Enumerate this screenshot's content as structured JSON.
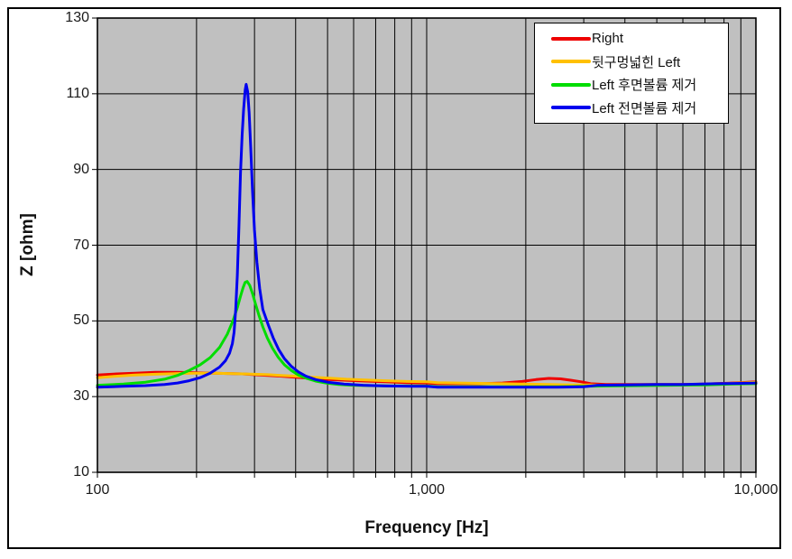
{
  "figure": {
    "background": "#ffffff",
    "border_color": "#000000"
  },
  "chart_data": {
    "type": "line",
    "title": "",
    "xlabel": "Frequency [Hz]",
    "ylabel": "Z [ohm]",
    "x_scale": "log",
    "xlim": [
      100,
      10000
    ],
    "ylim": [
      10,
      130
    ],
    "y_tick_step": 20,
    "y_tick_labels": [
      "10",
      "30",
      "50",
      "70",
      "90",
      "110",
      "130"
    ],
    "x_ticks": [
      {
        "value": 100,
        "label": "100"
      },
      {
        "value": 1000,
        "label": "1,000"
      },
      {
        "value": 10000,
        "label": "10,000"
      }
    ],
    "grid": true,
    "grid_style": "log minor vertical gridlines and major horizontal gridlines, black on silver",
    "plot_background": "#c0c0c0",
    "gridline_color": "#000000",
    "legend": {
      "position": "top-right-inside",
      "background": "#ffffff",
      "border_color": "#000000"
    },
    "series": [
      {
        "name": "Right",
        "color": "#ee0000",
        "points": [
          [
            100,
            35.7
          ],
          [
            115,
            36.0
          ],
          [
            130,
            36.2
          ],
          [
            150,
            36.4
          ],
          [
            175,
            36.4
          ],
          [
            200,
            36.3
          ],
          [
            225,
            36.2
          ],
          [
            250,
            36.1
          ],
          [
            275,
            36.0
          ],
          [
            300,
            35.8
          ],
          [
            330,
            35.6
          ],
          [
            360,
            35.4
          ],
          [
            400,
            35.1
          ],
          [
            450,
            34.8
          ],
          [
            500,
            34.5
          ],
          [
            570,
            34.3
          ],
          [
            650,
            34.1
          ],
          [
            750,
            33.9
          ],
          [
            870,
            33.7
          ],
          [
            1000,
            33.6
          ],
          [
            1080,
            33.4
          ],
          [
            1250,
            33.4
          ],
          [
            1450,
            33.4
          ],
          [
            1700,
            33.6
          ],
          [
            1950,
            34.0
          ],
          [
            2150,
            34.5
          ],
          [
            2350,
            34.8
          ],
          [
            2550,
            34.7
          ],
          [
            2750,
            34.3
          ],
          [
            2950,
            33.9
          ],
          [
            3150,
            33.4
          ],
          [
            3500,
            33.2
          ],
          [
            4000,
            33.2
          ],
          [
            5000,
            33.2
          ],
          [
            6000,
            33.2
          ],
          [
            7000,
            33.3
          ],
          [
            8000,
            33.5
          ],
          [
            9000,
            33.7
          ],
          [
            10000,
            33.9
          ]
        ]
      },
      {
        "name": "뒷구멍넓힌 Left",
        "color": "#ffc000",
        "points": [
          [
            100,
            35.0
          ],
          [
            115,
            35.4
          ],
          [
            130,
            35.7
          ],
          [
            150,
            35.9
          ],
          [
            175,
            36.1
          ],
          [
            200,
            36.2
          ],
          [
            225,
            36.2
          ],
          [
            250,
            36.1
          ],
          [
            275,
            36.0
          ],
          [
            300,
            35.9
          ],
          [
            330,
            35.8
          ],
          [
            360,
            35.6
          ],
          [
            400,
            35.4
          ],
          [
            450,
            35.1
          ],
          [
            500,
            34.9
          ],
          [
            570,
            34.6
          ],
          [
            650,
            34.4
          ],
          [
            750,
            34.2
          ],
          [
            870,
            34.0
          ],
          [
            1000,
            33.9
          ],
          [
            1080,
            33.7
          ],
          [
            1250,
            33.6
          ],
          [
            1450,
            33.5
          ],
          [
            1700,
            33.4
          ],
          [
            1950,
            33.3
          ],
          [
            2350,
            33.2
          ],
          [
            2750,
            33.1
          ],
          [
            3150,
            33.1
          ],
          [
            3500,
            33.0
          ],
          [
            4000,
            33.0
          ],
          [
            5000,
            33.0
          ],
          [
            6000,
            33.1
          ],
          [
            7000,
            33.2
          ],
          [
            8000,
            33.4
          ],
          [
            9000,
            33.6
          ],
          [
            10000,
            33.8
          ]
        ]
      },
      {
        "name": "Left 후면볼륨 제거",
        "color": "#00dd00",
        "points": [
          [
            100,
            33.0
          ],
          [
            120,
            33.3
          ],
          [
            140,
            33.8
          ],
          [
            160,
            34.6
          ],
          [
            175,
            35.6
          ],
          [
            190,
            36.9
          ],
          [
            205,
            38.4
          ],
          [
            220,
            40.3
          ],
          [
            235,
            43.0
          ],
          [
            248,
            46.5
          ],
          [
            258,
            50.0
          ],
          [
            266,
            53.5
          ],
          [
            272,
            56.5
          ],
          [
            277,
            58.8
          ],
          [
            281,
            60.2
          ],
          [
            285,
            60.4
          ],
          [
            290,
            59.4
          ],
          [
            296,
            57.2
          ],
          [
            302,
            54.5
          ],
          [
            310,
            51.3
          ],
          [
            318,
            48.4
          ],
          [
            328,
            45.5
          ],
          [
            340,
            42.8
          ],
          [
            354,
            40.4
          ],
          [
            370,
            38.4
          ],
          [
            388,
            36.9
          ],
          [
            408,
            35.7
          ],
          [
            432,
            34.8
          ],
          [
            460,
            34.1
          ],
          [
            495,
            33.6
          ],
          [
            540,
            33.2
          ],
          [
            600,
            33.0
          ],
          [
            680,
            32.9
          ],
          [
            780,
            32.8
          ],
          [
            900,
            32.8
          ],
          [
            1000,
            32.8
          ],
          [
            1080,
            32.6
          ],
          [
            1300,
            32.6
          ],
          [
            1600,
            32.6
          ],
          [
            2000,
            32.6
          ],
          [
            2500,
            32.6
          ],
          [
            3000,
            32.7
          ],
          [
            3600,
            32.8
          ],
          [
            4500,
            32.9
          ],
          [
            5500,
            33.0
          ],
          [
            7000,
            33.1
          ],
          [
            8500,
            33.3
          ],
          [
            10000,
            33.4
          ]
        ]
      },
      {
        "name": "Left 전면볼륨 제거",
        "color": "#0000ee",
        "points": [
          [
            100,
            32.5
          ],
          [
            120,
            32.7
          ],
          [
            140,
            32.9
          ],
          [
            160,
            33.2
          ],
          [
            175,
            33.6
          ],
          [
            190,
            34.2
          ],
          [
            205,
            35.0
          ],
          [
            220,
            36.2
          ],
          [
            235,
            37.8
          ],
          [
            245,
            39.5
          ],
          [
            252,
            41.5
          ],
          [
            257,
            44.0
          ],
          [
            260,
            47.0
          ],
          [
            263,
            53.0
          ],
          [
            266,
            62.0
          ],
          [
            269,
            75.0
          ],
          [
            272,
            89.0
          ],
          [
            275,
            99.0
          ],
          [
            278,
            106.0
          ],
          [
            281,
            111.0
          ],
          [
            283,
            112.5
          ],
          [
            286,
            110.5
          ],
          [
            289,
            105.0
          ],
          [
            292,
            96.0
          ],
          [
            296,
            84.0
          ],
          [
            300,
            74.0
          ],
          [
            305,
            65.5
          ],
          [
            311,
            58.5
          ],
          [
            318,
            53.0
          ],
          [
            330,
            49.0
          ],
          [
            342,
            45.5
          ],
          [
            355,
            42.5
          ],
          [
            370,
            40.0
          ],
          [
            388,
            38.0
          ],
          [
            408,
            36.5
          ],
          [
            430,
            35.4
          ],
          [
            460,
            34.5
          ],
          [
            500,
            33.8
          ],
          [
            560,
            33.3
          ],
          [
            640,
            33.0
          ],
          [
            750,
            32.8
          ],
          [
            900,
            32.7
          ],
          [
            1000,
            32.7
          ],
          [
            1080,
            32.5
          ],
          [
            1300,
            32.5
          ],
          [
            1600,
            32.5
          ],
          [
            2000,
            32.5
          ],
          [
            2500,
            32.5
          ],
          [
            3000,
            32.6
          ],
          [
            3300,
            33.0
          ],
          [
            4000,
            33.1
          ],
          [
            5000,
            33.2
          ],
          [
            6000,
            33.2
          ],
          [
            7500,
            33.4
          ],
          [
            9000,
            33.5
          ],
          [
            10000,
            33.6
          ]
        ]
      }
    ]
  }
}
